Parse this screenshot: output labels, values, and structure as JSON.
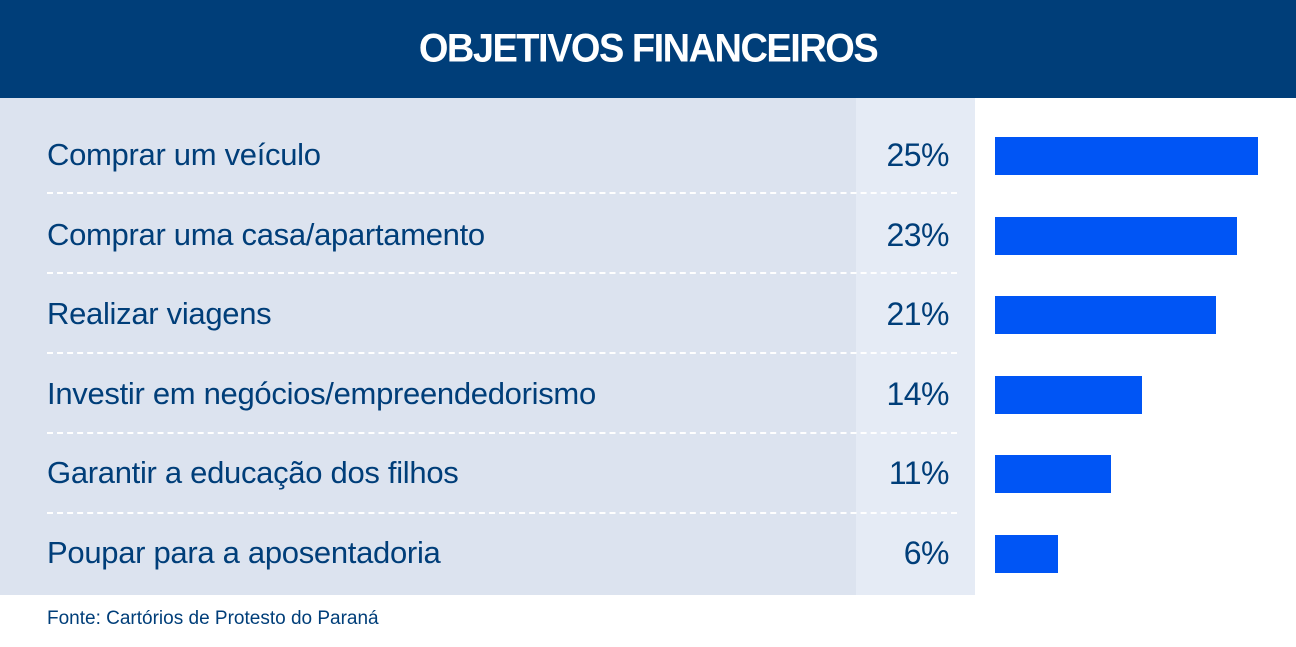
{
  "header": {
    "title": "OBJETIVOS FINANCEIROS"
  },
  "colors": {
    "header_bg": "#003e79",
    "label_panel_bg": "#dce3ef",
    "pct_panel_bg": "#e5ebf5",
    "bar": "#0055f5",
    "text": "#003e79"
  },
  "rows": [
    {
      "label": "Comprar um veículo",
      "pct": "25%"
    },
    {
      "label": "Comprar uma casa/apartamento",
      "pct": "23%"
    },
    {
      "label": "Realizar viagens",
      "pct": "21%"
    },
    {
      "label": "Investir em negócios/empreendedorismo",
      "pct": "14%"
    },
    {
      "label": "Garantir a educação dos filhos",
      "pct": "11%"
    },
    {
      "label": "Poupar para a aposentadoria",
      "pct": "6%"
    }
  ],
  "footer": {
    "source": "Fonte: Cartórios de Protesto do Paraná"
  },
  "chart_data": {
    "type": "bar",
    "orientation": "horizontal",
    "title": "OBJETIVOS FINANCEIROS",
    "categories": [
      "Comprar um veículo",
      "Comprar uma casa/apartamento",
      "Realizar viagens",
      "Investir em negócios/empreendedorismo",
      "Garantir a educação dos filhos",
      "Poupar para a aposentadoria"
    ],
    "values": [
      25,
      23,
      21,
      14,
      11,
      6
    ],
    "unit": "%",
    "xlabel": "",
    "ylabel": "",
    "grid": false,
    "legend": null,
    "data_labels": [
      "25%",
      "23%",
      "21%",
      "14%",
      "11%",
      "6%"
    ],
    "source": "Fonte: Cartórios de Protesto do Paraná"
  }
}
